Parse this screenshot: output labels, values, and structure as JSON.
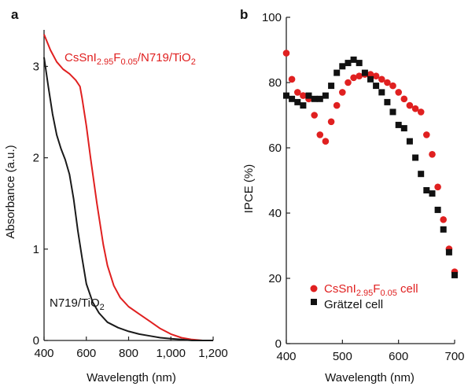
{
  "chart_data": [
    {
      "panel_label": "a",
      "type": "line",
      "xlabel": "Wavelength (nm)",
      "ylabel": "Absorbance (a.u.)",
      "xlim": [
        400,
        1200
      ],
      "ylim": [
        0,
        3.4
      ],
      "x_ticks": [
        "400",
        "600",
        "800",
        "1,000",
        "1,200"
      ],
      "x_tick_values": [
        400,
        600,
        800,
        1000,
        1200
      ],
      "y_ticks": [
        "0",
        "1",
        "2",
        "3"
      ],
      "y_tick_values": [
        0,
        1,
        2,
        3
      ],
      "series": [
        {
          "color": "#e02020",
          "label_parts": [
            [
              "CsSnI",
              ""
            ],
            [
              "2.95",
              "sub"
            ],
            [
              "F",
              ""
            ],
            [
              "0.05",
              "sub"
            ],
            [
              "/N719/TiO",
              ""
            ],
            [
              "2",
              "sub"
            ]
          ],
          "x": [
            400,
            430,
            460,
            490,
            520,
            550,
            570,
            580,
            600,
            620,
            650,
            680,
            700,
            730,
            760,
            800,
            850,
            900,
            950,
            1000,
            1050,
            1100,
            1150,
            1200
          ],
          "y": [
            3.35,
            3.18,
            3.05,
            2.97,
            2.92,
            2.85,
            2.78,
            2.65,
            2.35,
            2.0,
            1.5,
            1.05,
            0.82,
            0.6,
            0.47,
            0.37,
            0.29,
            0.21,
            0.13,
            0.07,
            0.03,
            0.01,
            0.0,
            0.0
          ]
        },
        {
          "color": "#1a1a1a",
          "label_parts": [
            [
              "N719/TiO",
              ""
            ],
            [
              "2",
              "sub"
            ]
          ],
          "x": [
            400,
            420,
            440,
            460,
            480,
            500,
            520,
            540,
            560,
            580,
            600,
            630,
            660,
            700,
            750,
            800,
            850,
            900,
            950,
            1000,
            1050,
            1100,
            1150,
            1200
          ],
          "y": [
            3.1,
            2.78,
            2.48,
            2.25,
            2.1,
            1.98,
            1.82,
            1.55,
            1.2,
            0.9,
            0.62,
            0.42,
            0.3,
            0.2,
            0.14,
            0.1,
            0.07,
            0.05,
            0.03,
            0.02,
            0.01,
            0.0,
            0.0,
            0.0
          ]
        }
      ]
    },
    {
      "panel_label": "b",
      "type": "scatter",
      "xlabel": "Wavelength (nm)",
      "ylabel": "IPCE (%)",
      "xlim": [
        400,
        700
      ],
      "ylim": [
        0,
        100
      ],
      "x_ticks": [
        "400",
        "500",
        "600",
        "700"
      ],
      "x_tick_values": [
        400,
        500,
        600,
        700
      ],
      "y_ticks": [
        "0",
        "20",
        "40",
        "60",
        "80",
        "100"
      ],
      "y_tick_values": [
        0,
        20,
        40,
        60,
        80,
        100
      ],
      "legend_position": "bottom-left",
      "series": [
        {
          "marker": "circle",
          "color": "#e02020",
          "label_parts": [
            [
              "CsSnI",
              ""
            ],
            [
              "2.95",
              "sub"
            ],
            [
              "F",
              ""
            ],
            [
              "0.05",
              "sub"
            ],
            [
              " cell",
              ""
            ]
          ],
          "x": [
            400,
            410,
            420,
            430,
            440,
            450,
            460,
            470,
            480,
            490,
            500,
            510,
            520,
            530,
            540,
            550,
            560,
            570,
            580,
            590,
            600,
            610,
            620,
            630,
            640,
            650,
            660,
            670,
            680,
            690,
            700
          ],
          "y": [
            89,
            81,
            77,
            76,
            75,
            70,
            64,
            62,
            68,
            73,
            77,
            80,
            81.5,
            82,
            82.5,
            82.5,
            82,
            81,
            80,
            79,
            77,
            75,
            73,
            72,
            71,
            64,
            58,
            48,
            38,
            29,
            22
          ]
        },
        {
          "marker": "square",
          "color": "#111111",
          "label_parts": [
            [
              "Grätzel cell",
              ""
            ]
          ],
          "x": [
            400,
            410,
            420,
            430,
            440,
            450,
            460,
            470,
            480,
            490,
            500,
            510,
            520,
            530,
            540,
            550,
            560,
            570,
            580,
            590,
            600,
            610,
            620,
            630,
            640,
            650,
            660,
            670,
            680,
            690,
            700
          ],
          "y": [
            76,
            75,
            74,
            73,
            76,
            75,
            75,
            76,
            79,
            83,
            85,
            86,
            87,
            86,
            83,
            81,
            79,
            77,
            74,
            71,
            67,
            66,
            62,
            57,
            52,
            47,
            46,
            41,
            35,
            28,
            21
          ]
        }
      ]
    }
  ]
}
